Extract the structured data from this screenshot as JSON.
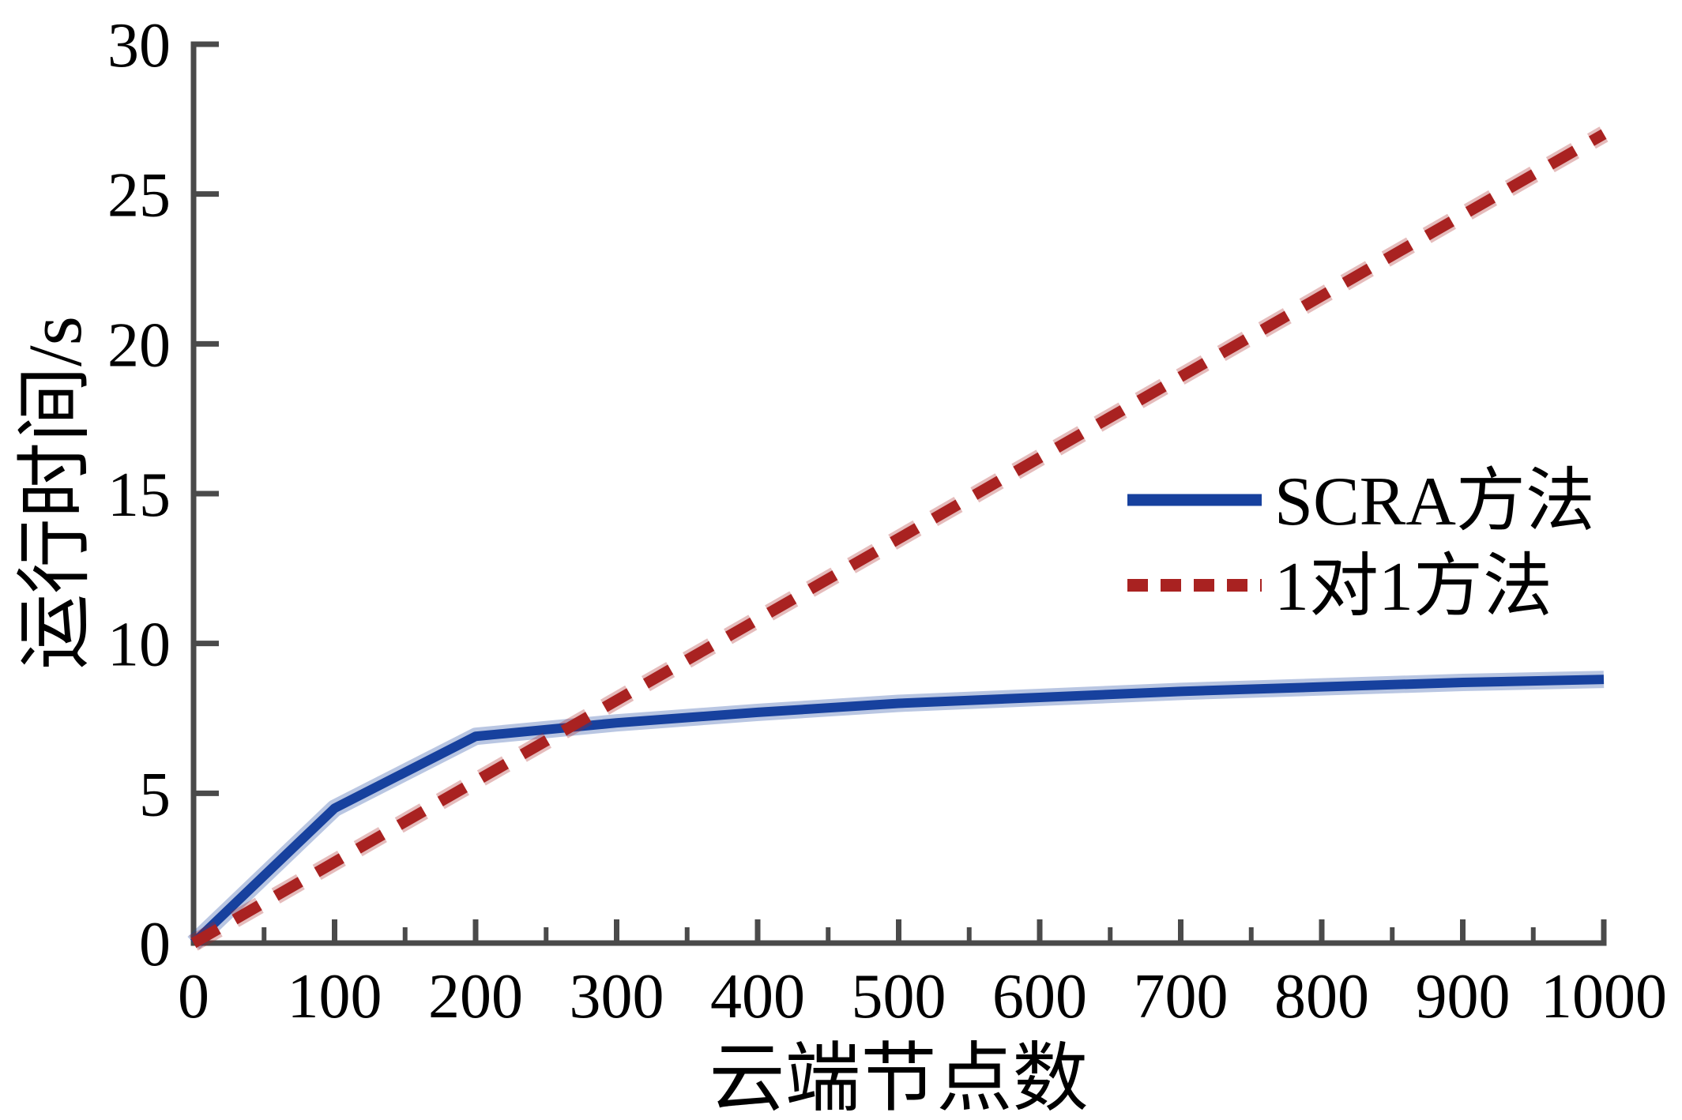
{
  "chart_data": {
    "type": "line",
    "title": "",
    "xlabel": "云端节点数",
    "ylabel": "运行时间/s",
    "xlim": [
      0,
      1000
    ],
    "ylim": [
      0,
      30
    ],
    "grid": false,
    "legend_position": "right-center",
    "x_major_ticks": [
      0,
      100,
      200,
      300,
      400,
      500,
      600,
      700,
      800,
      900,
      1000
    ],
    "x_tick_labels": [
      "0",
      "100",
      "200",
      "300",
      "400",
      "500",
      "600",
      "700",
      "800",
      "900",
      "1000"
    ],
    "x_minor_ticks": [
      50,
      150,
      250,
      350,
      450,
      550,
      650,
      750,
      850,
      950
    ],
    "y_ticks": [
      0,
      5,
      10,
      15,
      20,
      25,
      30
    ],
    "y_tick_labels": [
      "0",
      "5",
      "10",
      "15",
      "20",
      "25",
      "30"
    ],
    "series": [
      {
        "name": "SCRA方法",
        "color": "#17419e",
        "line_style": "solid",
        "x": [
          0,
          100,
          200,
          300,
          400,
          500,
          600,
          700,
          800,
          900,
          1000
        ],
        "y": [
          0,
          4.5,
          6.9,
          7.35,
          7.7,
          8.0,
          8.2,
          8.4,
          8.55,
          8.7,
          8.8
        ]
      },
      {
        "name": "1对1方法",
        "color": "#a92221",
        "line_style": "dashed",
        "x": [
          0,
          1000
        ],
        "y": [
          0,
          27
        ]
      }
    ],
    "axis_color": "#4a4a4a",
    "text_color": "#000000"
  }
}
